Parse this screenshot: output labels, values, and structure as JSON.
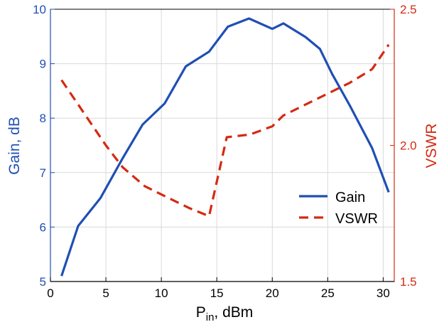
{
  "chart_data": {
    "type": "line",
    "x_axis": {
      "label_main": "P",
      "label_sub": "in",
      "label_unit": ", dBm",
      "range": [
        0,
        31
      ],
      "ticks": [
        0,
        5,
        10,
        15,
        20,
        25,
        30
      ],
      "tick_labels": [
        "0",
        "5",
        "10",
        "15",
        "20",
        "25",
        "30"
      ]
    },
    "y_axis_left": {
      "label": "Gain, dB",
      "range": [
        5,
        10
      ],
      "ticks": [
        5,
        6,
        7,
        8,
        9,
        10
      ],
      "tick_labels": [
        "5",
        "6",
        "7",
        "8",
        "9",
        "10"
      ],
      "color": "#1f4fb4"
    },
    "y_axis_right": {
      "label": "VSWR",
      "range": [
        1.5,
        2.5
      ],
      "ticks": [
        1.5,
        2.0,
        2.5
      ],
      "tick_labels": [
        "1.5",
        "2.0",
        "2.5"
      ],
      "color": "#d42a12"
    },
    "grid": true,
    "legend_position": "center-right",
    "series": [
      {
        "name": "Gain",
        "axis": "left",
        "style": "solid",
        "color": "#1f4fb4",
        "x": [
          1,
          2.5,
          4.5,
          6.5,
          8.3,
          10.3,
          12.2,
          14.3,
          16.0,
          17.9,
          20.0,
          21.0,
          23.0,
          24.3,
          25.4,
          27.0,
          29.0,
          30.5
        ],
        "y": [
          5.1,
          6.02,
          6.53,
          7.26,
          7.88,
          8.27,
          8.95,
          9.22,
          9.68,
          9.83,
          9.64,
          9.74,
          9.49,
          9.27,
          8.81,
          8.23,
          7.45,
          6.64
        ]
      },
      {
        "name": "VSWR",
        "axis": "right",
        "style": "dashed",
        "color": "#d42a12",
        "x": [
          1,
          3.0,
          5.0,
          6.5,
          8.5,
          10.5,
          12.5,
          14.3,
          15.9,
          18.0,
          20.0,
          21.0,
          23.0,
          25.0,
          27.0,
          29.0,
          30.5
        ],
        "y": [
          2.24,
          2.12,
          2.0,
          1.92,
          1.85,
          1.81,
          1.77,
          1.74,
          2.03,
          2.04,
          2.07,
          2.11,
          2.15,
          2.19,
          2.23,
          2.28,
          2.37
        ]
      }
    ]
  }
}
